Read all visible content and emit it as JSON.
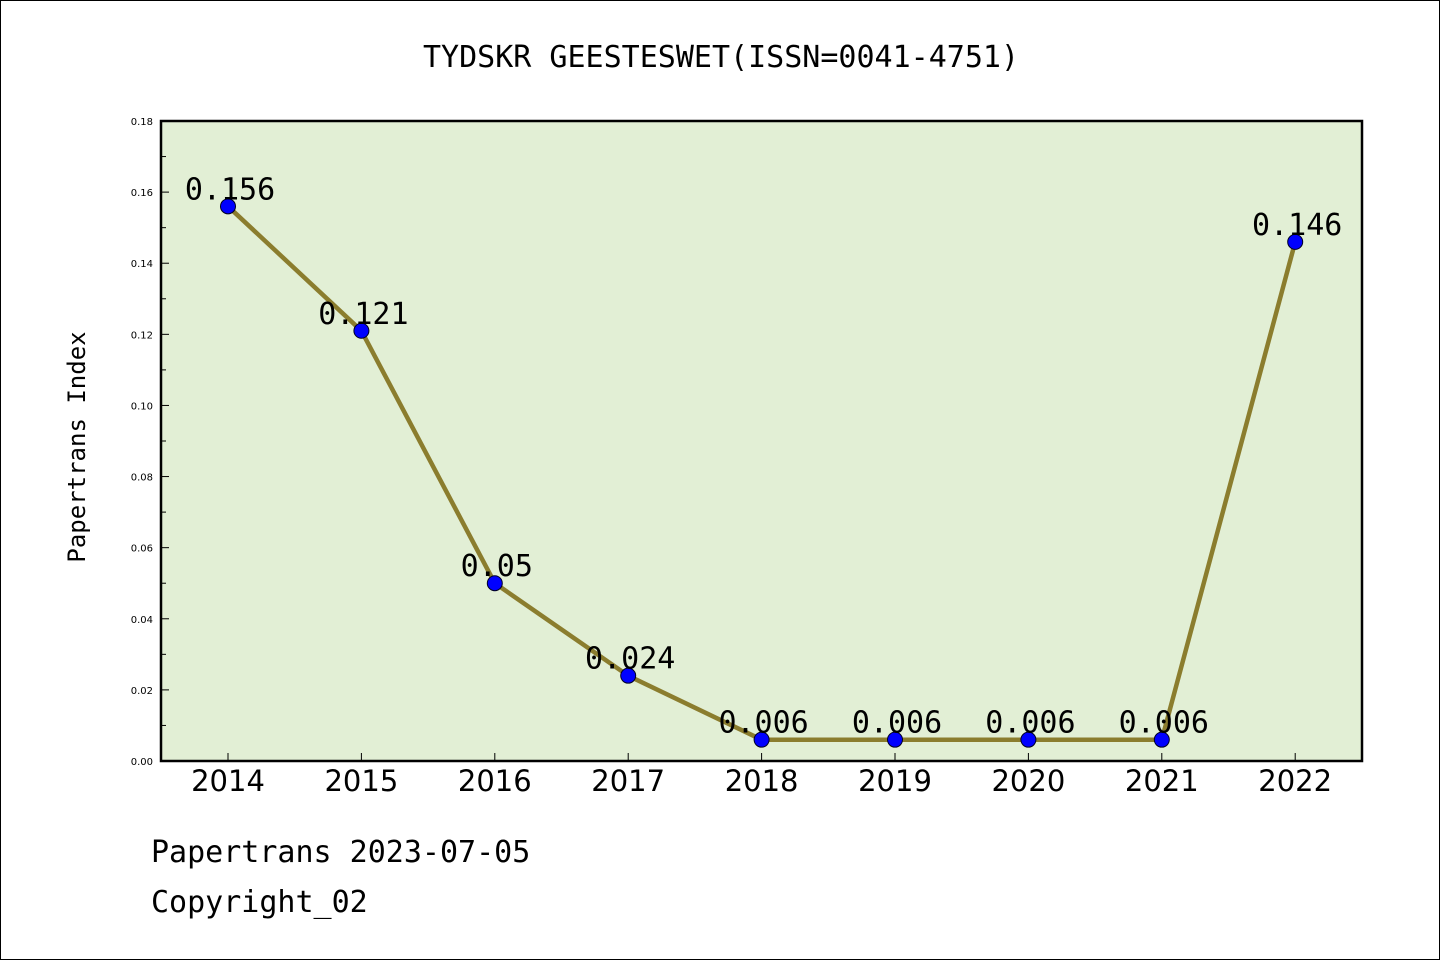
{
  "chart_data": {
    "type": "line",
    "title": "TYDSKR GEESTESWET(ISSN=0041-4751)",
    "xlabel": "",
    "ylabel": "Papertrans Index",
    "categories": [
      "2014",
      "2015",
      "2016",
      "2017",
      "2018",
      "2019",
      "2020",
      "2021",
      "2022"
    ],
    "values": [
      0.156,
      0.121,
      0.05,
      0.024,
      0.006,
      0.006,
      0.006,
      0.006,
      0.146
    ],
    "data_labels": [
      "0.156",
      "0.121",
      "0.05",
      "0.024",
      "0.006",
      "0.006",
      "0.006",
      "0.006",
      "0.146"
    ],
    "yticks": [
      "0.00",
      "0.02",
      "0.04",
      "0.06",
      "0.08",
      "0.10",
      "0.12",
      "0.14",
      "0.16",
      "0.18"
    ],
    "ylim": [
      0,
      0.18
    ],
    "grid": false,
    "legend": "none",
    "colors": {
      "plot_background": "#e2efd5",
      "line": "#8b7d2e",
      "marker": "#0000ff"
    }
  },
  "footer": {
    "line1": "Papertrans 2023-07-05",
    "line2": "Copyright_02"
  }
}
